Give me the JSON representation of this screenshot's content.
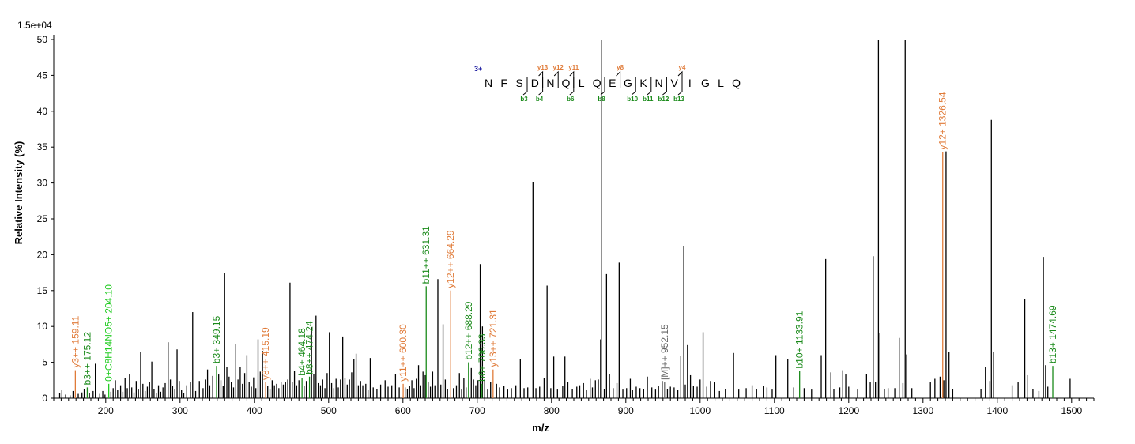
{
  "chart_data": {
    "type": "spectrum",
    "scale_label": "1.5e+04",
    "xlabel": "m/z",
    "ylabel": "Relative   Intensity (%)",
    "xlim": [
      130,
      1530
    ],
    "ylim": [
      0,
      50
    ],
    "x_ticks": [
      200,
      300,
      400,
      500,
      600,
      700,
      800,
      900,
      1000,
      1100,
      1200,
      1300,
      1400,
      1500
    ],
    "y_ticks": [
      0,
      5,
      10,
      15,
      20,
      25,
      30,
      35,
      40,
      45,
      50
    ],
    "colors": {
      "y_ion": "#e07b39",
      "b_ion": "#1a8a1a",
      "neutral_loss": "#22cc22",
      "precursor": "#666666",
      "unassigned": "#000000",
      "charge": "#1a1aa0"
    },
    "peptide": {
      "charge": "3+",
      "sequence": [
        "N",
        "F",
        "S",
        "D",
        "N",
        "Q",
        "L",
        "Q",
        "E",
        "G",
        "K",
        "N",
        "V",
        "I",
        "G",
        "L",
        "Q"
      ],
      "y_ion_marks": [
        {
          "after": 4,
          "label": "y13"
        },
        {
          "after": 5,
          "label": "y12"
        },
        {
          "after": 6,
          "label": "y11"
        },
        {
          "after": 9,
          "label": "y8"
        },
        {
          "after": 13,
          "label": "y4"
        }
      ],
      "b_ion_marks": [
        {
          "after": 3,
          "label": "b3"
        },
        {
          "after": 4,
          "label": "b4"
        },
        {
          "after": 6,
          "label": "b6"
        },
        {
          "after": 8,
          "label": "b8"
        },
        {
          "after": 10,
          "label": "b10"
        },
        {
          "after": 11,
          "label": "b11"
        },
        {
          "after": 12,
          "label": "b12"
        },
        {
          "after": 13,
          "label": "b13"
        }
      ]
    },
    "annotated_peaks": [
      {
        "mz": 159.11,
        "intensity": 3.9,
        "label": "y3++ 159.11",
        "ion": "y"
      },
      {
        "mz": 175.12,
        "intensity": 1.5,
        "label": "b3++ 175.12",
        "ion": "b"
      },
      {
        "mz": 204.1,
        "intensity": 2.0,
        "label": "0+C8H14NO5+ 204.10",
        "ion": "neutral"
      },
      {
        "mz": 349.15,
        "intensity": 4.5,
        "label": "b3+ 349.15",
        "ion": "b"
      },
      {
        "mz": 415.19,
        "intensity": 2.2,
        "label": "y8++ 415.19",
        "ion": "y"
      },
      {
        "mz": 464.18,
        "intensity": 2.8,
        "label": "b4+ 464.18",
        "ion": "b"
      },
      {
        "mz": 474.24,
        "intensity": 3.0,
        "label": "b8++ 474.24",
        "ion": "b"
      },
      {
        "mz": 600.3,
        "intensity": 2.0,
        "label": "y11++ 600.30",
        "ion": "y"
      },
      {
        "mz": 631.31,
        "intensity": 15.6,
        "label": "b11++ 631.31",
        "ion": "b"
      },
      {
        "mz": 664.29,
        "intensity": 15.0,
        "label": "y12++ 664.29",
        "ion": "y"
      },
      {
        "mz": 688.29,
        "intensity": 5.0,
        "label": "b12++ 688.29",
        "ion": "b"
      },
      {
        "mz": 706.33,
        "intensity": 2.0,
        "label": "b6+ 706.33",
        "ion": "b"
      },
      {
        "mz": 721.31,
        "intensity": 4.0,
        "label": "y13++ 721.31",
        "ion": "y"
      },
      {
        "mz": 952.15,
        "intensity": 2.2,
        "label": "[M]++ 952.15",
        "ion": "precursor"
      },
      {
        "mz": 1133.91,
        "intensity": 3.8,
        "label": "b10+ 1133.91",
        "ion": "b"
      },
      {
        "mz": 1326.54,
        "intensity": 34.3,
        "label": "y12+ 1326.54",
        "ion": "y"
      },
      {
        "mz": 1474.69,
        "intensity": 4.5,
        "label": "b13+ 1474.69",
        "ion": "b"
      }
    ],
    "peaks": [
      [
        138,
        0.7
      ],
      [
        141,
        1.1
      ],
      [
        146,
        0.5
      ],
      [
        152,
        0.4
      ],
      [
        156,
        1.0
      ],
      [
        163,
        0.6
      ],
      [
        168,
        0.8
      ],
      [
        171,
        1.3
      ],
      [
        178,
        0.7
      ],
      [
        183,
        1.0
      ],
      [
        186,
        4.8
      ],
      [
        192,
        0.6
      ],
      [
        196,
        1.0
      ],
      [
        199,
        0.5
      ],
      [
        207,
        0.9
      ],
      [
        210,
        1.4
      ],
      [
        213,
        2.5
      ],
      [
        216,
        1.1
      ],
      [
        220,
        1.8
      ],
      [
        223,
        0.9
      ],
      [
        226,
        2.8
      ],
      [
        229,
        1.4
      ],
      [
        232,
        3.3
      ],
      [
        235,
        1.5
      ],
      [
        238,
        0.8
      ],
      [
        241,
        2.4
      ],
      [
        244,
        1.2
      ],
      [
        247,
        6.4
      ],
      [
        250,
        2.0
      ],
      [
        253,
        1.0
      ],
      [
        256,
        1.6
      ],
      [
        259,
        2.2
      ],
      [
        262,
        5.1
      ],
      [
        265,
        1.3
      ],
      [
        268,
        0.7
      ],
      [
        271,
        1.8
      ],
      [
        274,
        0.9
      ],
      [
        277,
        1.5
      ],
      [
        280,
        2.1
      ],
      [
        284,
        7.8
      ],
      [
        287,
        2.6
      ],
      [
        290,
        1.7
      ],
      [
        293,
        1.2
      ],
      [
        296,
        6.8
      ],
      [
        299,
        2.4
      ],
      [
        302,
        1.1
      ],
      [
        305,
        0.7
      ],
      [
        309,
        1.8
      ],
      [
        314,
        2.3
      ],
      [
        317,
        12.0
      ],
      [
        321,
        1.0
      ],
      [
        326,
        2.4
      ],
      [
        331,
        1.4
      ],
      [
        334,
        2.6
      ],
      [
        337,
        4.0
      ],
      [
        340,
        1.8
      ],
      [
        344,
        3.1
      ],
      [
        352,
        3.3
      ],
      [
        355,
        2.5
      ],
      [
        358,
        1.7
      ],
      [
        360,
        17.4
      ],
      [
        363,
        4.4
      ],
      [
        366,
        3.0
      ],
      [
        369,
        2.3
      ],
      [
        372,
        1.5
      ],
      [
        375,
        7.6
      ],
      [
        378,
        2.6
      ],
      [
        381,
        4.3
      ],
      [
        384,
        2.0
      ],
      [
        387,
        3.5
      ],
      [
        390,
        6.0
      ],
      [
        393,
        2.3
      ],
      [
        396,
        1.6
      ],
      [
        399,
        2.9
      ],
      [
        402,
        1.4
      ],
      [
        405,
        8.2
      ],
      [
        408,
        3.7
      ],
      [
        411,
        6.6
      ],
      [
        418,
        1.7
      ],
      [
        421,
        1.2
      ],
      [
        424,
        2.5
      ],
      [
        427,
        1.8
      ],
      [
        430,
        2.0
      ],
      [
        433,
        1.4
      ],
      [
        436,
        2.3
      ],
      [
        439,
        1.9
      ],
      [
        442,
        2.2
      ],
      [
        445,
        2.6
      ],
      [
        448,
        16.1
      ],
      [
        451,
        2.3
      ],
      [
        454,
        3.8
      ],
      [
        457,
        1.8
      ],
      [
        460,
        2.5
      ],
      [
        467,
        1.7
      ],
      [
        470,
        2.4
      ],
      [
        477,
        9.9
      ],
      [
        480,
        3.4
      ],
      [
        483,
        11.5
      ],
      [
        486,
        2.1
      ],
      [
        489,
        1.8
      ],
      [
        492,
        2.6
      ],
      [
        495,
        1.4
      ],
      [
        498,
        3.5
      ],
      [
        501,
        9.2
      ],
      [
        504,
        2.1
      ],
      [
        507,
        1.4
      ],
      [
        510,
        2.7
      ],
      [
        513,
        1.5
      ],
      [
        516,
        2.6
      ],
      [
        519,
        8.6
      ],
      [
        522,
        2.8
      ],
      [
        525,
        1.9
      ],
      [
        528,
        2.6
      ],
      [
        531,
        3.6
      ],
      [
        534,
        5.4
      ],
      [
        537,
        6.2
      ],
      [
        540,
        1.8
      ],
      [
        543,
        2.4
      ],
      [
        546,
        1.8
      ],
      [
        550,
        2.0
      ],
      [
        553,
        1.1
      ],
      [
        556,
        5.6
      ],
      [
        560,
        1.5
      ],
      [
        565,
        1.3
      ],
      [
        570,
        1.9
      ],
      [
        576,
        2.5
      ],
      [
        580,
        1.6
      ],
      [
        585,
        1.8
      ],
      [
        590,
        3.4
      ],
      [
        595,
        1.5
      ],
      [
        603,
        1.5
      ],
      [
        606,
        1.3
      ],
      [
        609,
        1.7
      ],
      [
        612,
        2.5
      ],
      [
        615,
        1.4
      ],
      [
        618,
        2.7
      ],
      [
        621,
        4.6
      ],
      [
        624,
        1.8
      ],
      [
        627,
        3.7
      ],
      [
        630,
        3.2
      ],
      [
        634,
        2.2
      ],
      [
        637,
        1.6
      ],
      [
        640,
        3.7
      ],
      [
        643,
        1.8
      ],
      [
        647,
        16.6
      ],
      [
        651,
        1.9
      ],
      [
        654,
        10.3
      ],
      [
        657,
        2.6
      ],
      [
        660,
        1.3
      ],
      [
        668,
        1.4
      ],
      [
        672,
        1.8
      ],
      [
        676,
        3.5
      ],
      [
        679,
        1.2
      ],
      [
        682,
        2.8
      ],
      [
        685,
        1.5
      ],
      [
        692,
        4.2
      ],
      [
        695,
        2.6
      ],
      [
        698,
        1.8
      ],
      [
        701,
        2.5
      ],
      [
        704,
        18.7
      ],
      [
        707,
        10.0
      ],
      [
        710,
        2.6
      ],
      [
        714,
        1.2
      ],
      [
        718,
        2.3
      ],
      [
        726,
        2.0
      ],
      [
        730,
        1.5
      ],
      [
        736,
        1.7
      ],
      [
        741,
        1.2
      ],
      [
        746,
        1.4
      ],
      [
        752,
        1.8
      ],
      [
        758,
        5.4
      ],
      [
        763,
        1.4
      ],
      [
        768,
        1.5
      ],
      [
        775,
        30.1
      ],
      [
        779,
        1.4
      ],
      [
        784,
        1.6
      ],
      [
        790,
        2.8
      ],
      [
        794,
        15.7
      ],
      [
        799,
        1.4
      ],
      [
        803,
        5.8
      ],
      [
        808,
        1.2
      ],
      [
        815,
        1.7
      ],
      [
        818,
        5.8
      ],
      [
        822,
        2.3
      ],
      [
        828,
        1.3
      ],
      [
        834,
        1.6
      ],
      [
        838,
        1.8
      ],
      [
        843,
        2.1
      ],
      [
        847,
        1.1
      ],
      [
        852,
        2.7
      ],
      [
        855,
        1.5
      ],
      [
        859,
        2.5
      ],
      [
        863,
        2.6
      ],
      [
        866,
        8.2
      ],
      [
        867,
        50.0
      ],
      [
        871,
        1.3
      ],
      [
        874,
        17.3
      ],
      [
        878,
        3.4
      ],
      [
        883,
        1.4
      ],
      [
        888,
        2.1
      ],
      [
        891,
        18.9
      ],
      [
        896,
        1.2
      ],
      [
        901,
        1.4
      ],
      [
        906,
        2.7
      ],
      [
        909,
        1.1
      ],
      [
        914,
        1.6
      ],
      [
        919,
        1.4
      ],
      [
        924,
        1.3
      ],
      [
        929,
        3.0
      ],
      [
        935,
        1.5
      ],
      [
        940,
        1.2
      ],
      [
        944,
        1.7
      ],
      [
        949,
        2.4
      ],
      [
        956,
        1.3
      ],
      [
        960,
        1.6
      ],
      [
        965,
        1.5
      ],
      [
        970,
        1.1
      ],
      [
        974,
        5.9
      ],
      [
        978,
        21.2
      ],
      [
        980,
        1.9
      ],
      [
        983,
        7.4
      ],
      [
        987,
        3.2
      ],
      [
        991,
        1.7
      ],
      [
        996,
        1.6
      ],
      [
        1000,
        2.6
      ],
      [
        1004,
        9.2
      ],
      [
        1009,
        1.6
      ],
      [
        1014,
        2.4
      ],
      [
        1019,
        2.2
      ],
      [
        1026,
        1.0
      ],
      [
        1034,
        1.3
      ],
      [
        1045,
        6.3
      ],
      [
        1052,
        1.2
      ],
      [
        1062,
        1.4
      ],
      [
        1070,
        1.8
      ],
      [
        1076,
        1.3
      ],
      [
        1085,
        1.7
      ],
      [
        1090,
        1.5
      ],
      [
        1097,
        1.2
      ],
      [
        1102,
        6.0
      ],
      [
        1118,
        5.4
      ],
      [
        1126,
        1.5
      ],
      [
        1140,
        1.4
      ],
      [
        1150,
        1.2
      ],
      [
        1163,
        6.0
      ],
      [
        1169,
        19.4
      ],
      [
        1176,
        3.6
      ],
      [
        1180,
        1.3
      ],
      [
        1188,
        1.5
      ],
      [
        1192,
        3.9
      ],
      [
        1196,
        3.3
      ],
      [
        1200,
        1.6
      ],
      [
        1212,
        1.2
      ],
      [
        1224,
        3.4
      ],
      [
        1229,
        2.2
      ],
      [
        1233,
        19.8
      ],
      [
        1236,
        2.3
      ],
      [
        1240,
        50.0
      ],
      [
        1242,
        9.1
      ],
      [
        1248,
        1.3
      ],
      [
        1253,
        1.4
      ],
      [
        1262,
        1.4
      ],
      [
        1268,
        8.4
      ],
      [
        1273,
        2.1
      ],
      [
        1276,
        50.0
      ],
      [
        1278,
        6.1
      ],
      [
        1285,
        1.4
      ],
      [
        1310,
        2.2
      ],
      [
        1316,
        2.7
      ],
      [
        1323,
        3.0
      ],
      [
        1328,
        2.5
      ],
      [
        1331,
        34.4
      ],
      [
        1335,
        6.4
      ],
      [
        1340,
        1.3
      ],
      [
        1378,
        1.3
      ],
      [
        1384,
        4.3
      ],
      [
        1390,
        2.4
      ],
      [
        1392,
        38.8
      ],
      [
        1395,
        6.5
      ],
      [
        1420,
        1.8
      ],
      [
        1428,
        2.2
      ],
      [
        1437,
        13.8
      ],
      [
        1441,
        3.2
      ],
      [
        1448,
        1.3
      ],
      [
        1456,
        1.0
      ],
      [
        1462,
        19.7
      ],
      [
        1465,
        4.6
      ],
      [
        1468,
        1.6
      ],
      [
        1498,
        2.7
      ]
    ]
  }
}
